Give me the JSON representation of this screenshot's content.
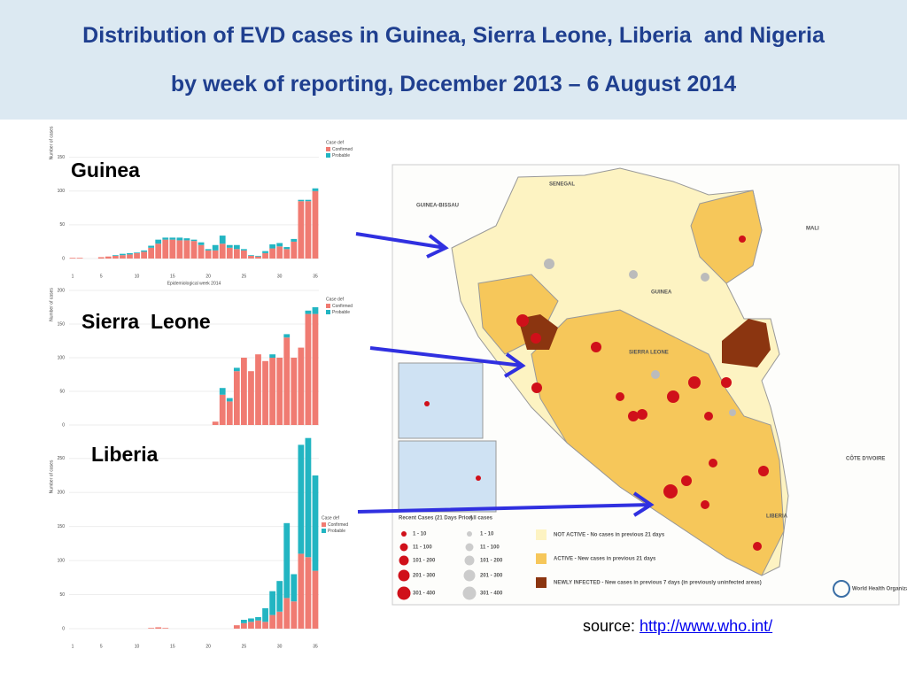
{
  "header": {
    "title_line1": "Distribution of EVD cases in Guinea, Sierra Leone, Liberia  and Nigeria",
    "title_line2": "by week of reporting, December 2013 – 6 August 2014"
  },
  "charts": [
    {
      "type": "bar",
      "label": "Guinea",
      "y_label": "Number of cases",
      "x_label": "Epidemiological week 2014",
      "legend_title": "Case def",
      "categories": [
        "1",
        null,
        null,
        null,
        "5",
        null,
        null,
        null,
        null,
        "10",
        null,
        null,
        null,
        null,
        "15",
        null,
        null,
        null,
        null,
        "20",
        null,
        null,
        null,
        null,
        "25",
        null,
        null,
        null,
        null,
        "30",
        null,
        null,
        null,
        null,
        "35"
      ],
      "series": [
        {
          "name": "Confirmed",
          "color": "#f07b72",
          "values": [
            1,
            1,
            0,
            0,
            2,
            3,
            4,
            5,
            6,
            8,
            10,
            16,
            22,
            28,
            28,
            27,
            27,
            26,
            20,
            12,
            12,
            22,
            16,
            14,
            12,
            4,
            3,
            8,
            15,
            18,
            14,
            25,
            85,
            85,
            100
          ]
        },
        {
          "name": "Probable",
          "color": "#22b5c2",
          "values": [
            0,
            0,
            0,
            0,
            0,
            0,
            1,
            2,
            2,
            1,
            2,
            3,
            6,
            3,
            3,
            4,
            3,
            2,
            4,
            2,
            8,
            12,
            4,
            6,
            2,
            1,
            1,
            3,
            6,
            5,
            3,
            4,
            2,
            2,
            4
          ]
        }
      ],
      "ylim": [
        0,
        185
      ],
      "yticks": [
        0,
        50,
        100,
        150
      ]
    },
    {
      "type": "bar",
      "label": "Sierra  Leone",
      "y_label": "Number of cases",
      "legend_title": "Case def",
      "categories": [
        null,
        null,
        null,
        null,
        null,
        null,
        null,
        null,
        null,
        null,
        null,
        null,
        null,
        null,
        null,
        null,
        null,
        null,
        null,
        null,
        null,
        null,
        null,
        null,
        null,
        null,
        null,
        null,
        null,
        null,
        null,
        null,
        null,
        null,
        null
      ],
      "series": [
        {
          "name": "Confirmed",
          "color": "#f07b72",
          "values": [
            0,
            0,
            0,
            0,
            0,
            0,
            0,
            0,
            0,
            0,
            0,
            0,
            0,
            0,
            0,
            0,
            0,
            0,
            0,
            0,
            5,
            45,
            35,
            80,
            100,
            80,
            105,
            95,
            100,
            100,
            130,
            100,
            115,
            165,
            165
          ]
        },
        {
          "name": "Probable",
          "color": "#22b5c2",
          "values": [
            0,
            0,
            0,
            0,
            0,
            0,
            0,
            0,
            0,
            0,
            0,
            0,
            0,
            0,
            0,
            0,
            0,
            0,
            0,
            0,
            0,
            10,
            5,
            5,
            0,
            0,
            0,
            0,
            5,
            0,
            5,
            0,
            0,
            5,
            10
          ]
        }
      ],
      "ylim": [
        0,
        200
      ],
      "yticks": [
        0,
        50,
        100,
        150,
        200
      ]
    },
    {
      "type": "bar",
      "label": "Liberia",
      "y_label": "Number of cases",
      "legend_title": "Case def",
      "categories": [
        "1",
        null,
        null,
        null,
        "5",
        null,
        null,
        null,
        null,
        "10",
        null,
        null,
        null,
        null,
        "15",
        null,
        null,
        null,
        null,
        "20",
        null,
        null,
        null,
        null,
        "25",
        null,
        null,
        null,
        null,
        "30",
        null,
        null,
        null,
        null,
        "35"
      ],
      "series": [
        {
          "name": "Confirmed",
          "color": "#f07b72",
          "values": [
            0,
            0,
            0,
            0,
            0,
            0,
            0,
            0,
            0,
            0,
            0,
            1,
            2,
            1,
            0,
            0,
            0,
            0,
            0,
            0,
            0,
            0,
            0,
            5,
            8,
            10,
            12,
            10,
            20,
            25,
            45,
            40,
            110,
            105,
            85
          ]
        },
        {
          "name": "Probable",
          "color": "#22b5c2",
          "values": [
            0,
            0,
            0,
            0,
            0,
            0,
            0,
            0,
            0,
            0,
            0,
            0,
            0,
            0,
            0,
            0,
            0,
            0,
            0,
            0,
            0,
            0,
            0,
            0,
            5,
            5,
            5,
            20,
            35,
            45,
            110,
            40,
            160,
            175,
            140
          ]
        }
      ],
      "ylim": [
        0,
        290
      ],
      "yticks": [
        0,
        50,
        100,
        150,
        200,
        250
      ]
    }
  ],
  "map": {
    "countries": [
      "SENEGAL",
      "GUINEA-BISSAU",
      "MALI",
      "GUINEA",
      "SIERRA LEONE",
      "LIBERIA",
      "CÔTE D'IVOIRE"
    ],
    "legend": {
      "recent_title": "Recent Cases (21 Days Prior)",
      "all_title": "All cases",
      "ranges": [
        "1 - 10",
        "11 - 100",
        "101 - 200",
        "201 - 300",
        "301 - 400"
      ],
      "not_active": "NOT ACTIVE - No cases in previous 21 days",
      "active": "ACTIVE - New cases in previous 21 days",
      "newly": "NEWLY INFECTED - New cases in previous 7 days (in previously uninfected areas)"
    },
    "who": "World Health Organization"
  },
  "source": {
    "label": "source:",
    "link": "http://www.who.int/"
  }
}
